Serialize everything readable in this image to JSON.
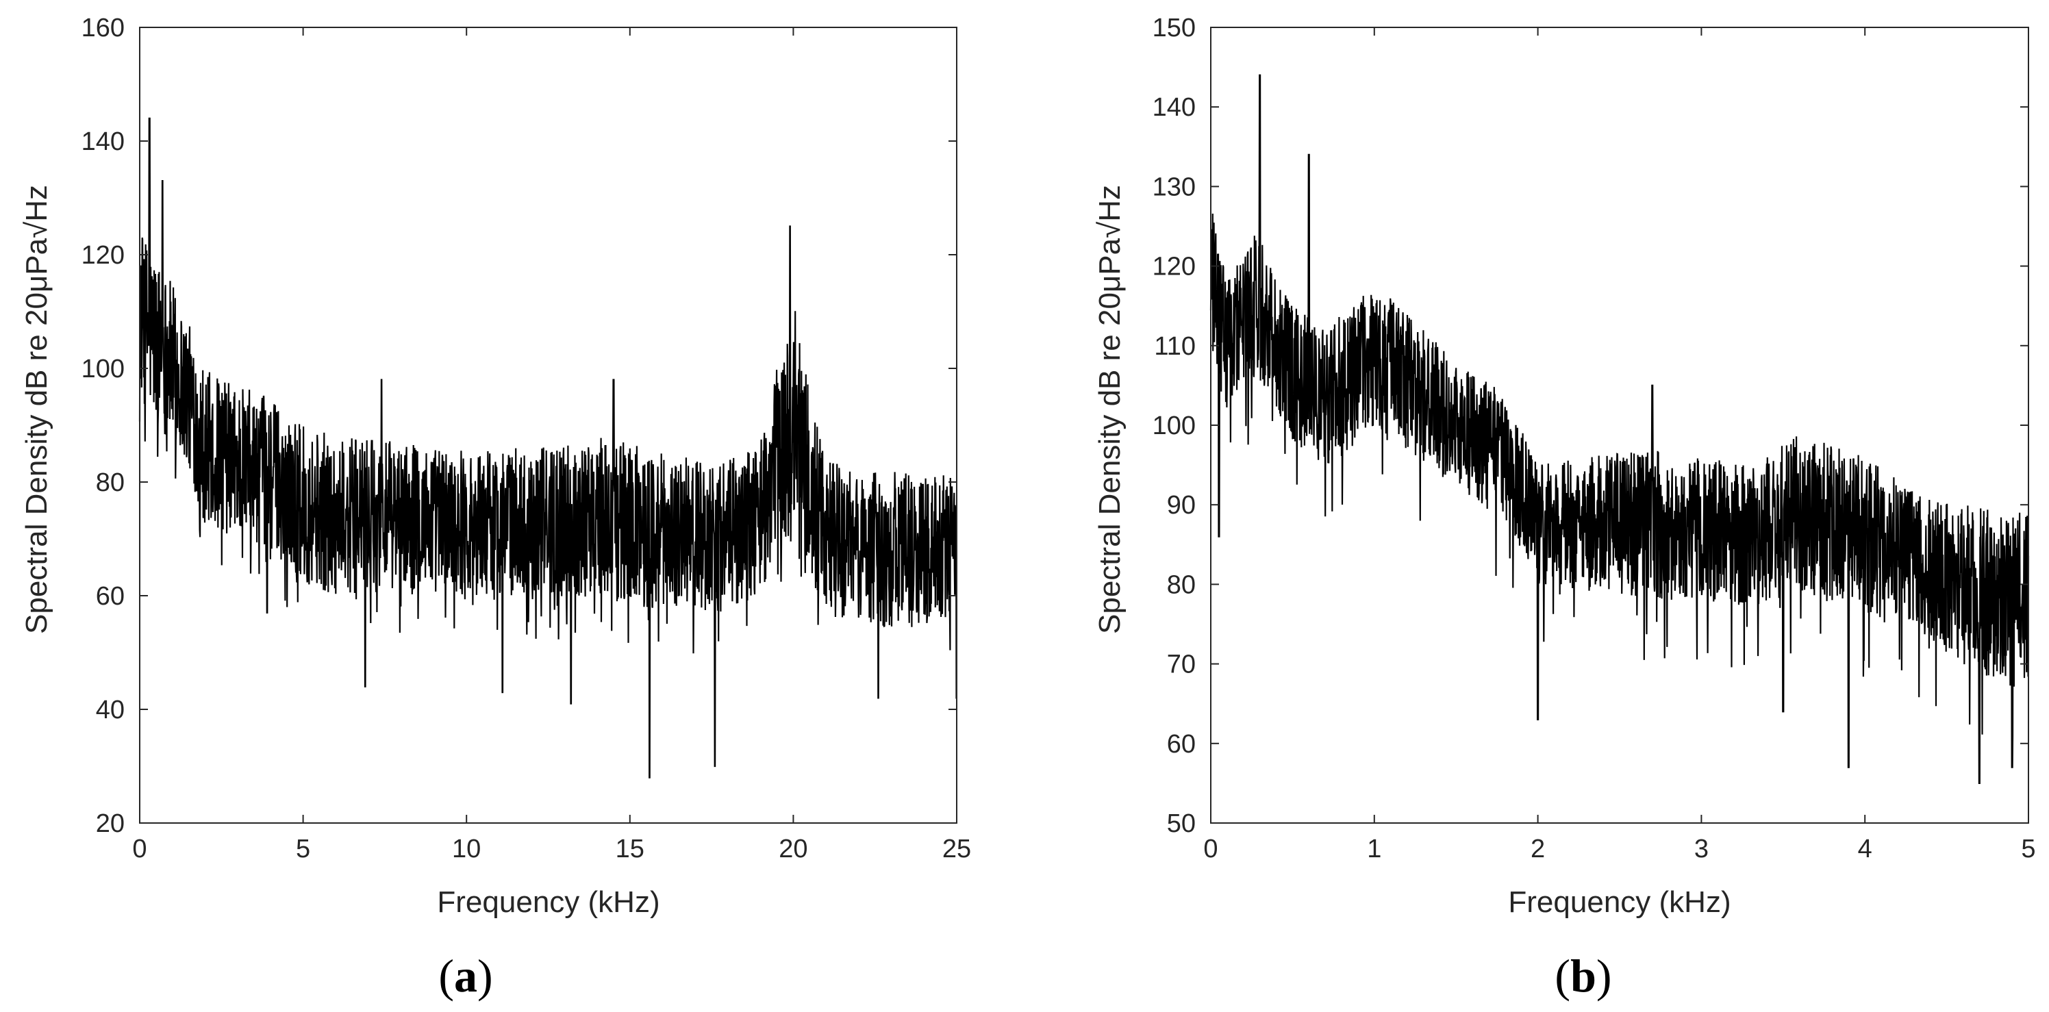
{
  "chart_data": [
    {
      "type": "line",
      "panel_label": "a",
      "xlabel": "Frequency (kHz)",
      "ylabel": "Spectral Density dB re 20μPa√Hz",
      "xlim": [
        0,
        25
      ],
      "ylim": [
        20,
        160
      ],
      "xticks": [
        0,
        5,
        10,
        15,
        20,
        25
      ],
      "yticks": [
        20,
        40,
        60,
        80,
        100,
        120,
        140,
        160
      ],
      "grid": false,
      "line_color": "#000000",
      "series": [
        {
          "x": [
            0,
            0.5,
            1,
            1.5,
            2,
            3,
            4,
            5,
            6,
            8,
            10,
            12,
            14,
            15,
            16,
            18,
            19,
            19.5,
            20,
            20.5,
            21,
            22,
            23,
            24,
            25
          ],
          "upper": [
            125,
            120,
            115,
            108,
            100,
            97,
            95,
            90,
            88,
            87,
            86,
            86,
            88,
            87,
            85,
            84,
            88,
            100,
            112,
            96,
            84,
            82,
            82,
            81,
            82
          ],
          "lower": [
            95,
            90,
            87,
            82,
            72,
            70,
            68,
            62,
            60,
            61,
            60,
            60,
            59,
            58,
            58,
            57,
            60,
            68,
            70,
            60,
            56,
            55,
            54,
            55,
            56
          ],
          "peaks": [
            [
              0.3,
              144
            ],
            [
              0.7,
              133
            ],
            [
              19.9,
              125
            ],
            [
              7.4,
              98
            ],
            [
              14.5,
              98
            ]
          ],
          "dips": [
            [
              15.6,
              28
            ],
            [
              17.6,
              30
            ],
            [
              11.1,
              43
            ],
            [
              13.2,
              41
            ],
            [
              6.9,
              44
            ],
            [
              22.6,
              42
            ],
            [
              25,
              42
            ],
            [
              3.9,
              57
            ]
          ]
        }
      ]
    },
    {
      "type": "line",
      "panel_label": "b",
      "xlabel": "Frequency (kHz)",
      "ylabel": "Spectral Density dB re 20μPa√Hz",
      "xlim": [
        0,
        5
      ],
      "ylim": [
        50,
        150
      ],
      "xticks": [
        0,
        1,
        2,
        3,
        4,
        5
      ],
      "yticks": [
        50,
        60,
        70,
        80,
        90,
        100,
        110,
        120,
        130,
        140,
        150
      ],
      "grid": false,
      "line_color": "#000000",
      "series": [
        {
          "x": [
            0,
            0.1,
            0.2,
            0.3,
            0.5,
            0.7,
            0.9,
            1,
            1.2,
            1.5,
            1.8,
            2,
            2.3,
            2.7,
            3,
            3.3,
            3.6,
            4,
            4.3,
            4.6,
            5
          ],
          "upper": [
            128,
            118,
            122,
            125,
            115,
            112,
            116,
            118,
            114,
            108,
            104,
            95,
            96,
            97,
            96,
            95,
            99,
            96,
            92,
            90,
            89
          ],
          "lower": [
            108,
            102,
            105,
            106,
            98,
            95,
            97,
            100,
            97,
            92,
            88,
            80,
            79,
            78,
            78,
            77,
            79,
            76,
            74,
            70,
            65
          ],
          "peaks": [
            [
              0.3,
              144
            ],
            [
              0.6,
              134
            ],
            [
              2.7,
              105
            ],
            [
              3.5,
              102
            ]
          ],
          "dips": [
            [
              3.9,
              57
            ],
            [
              4.7,
              55
            ],
            [
              2.0,
              63
            ],
            [
              4.9,
              57
            ],
            [
              0.05,
              86
            ],
            [
              3.5,
              64
            ]
          ]
        }
      ]
    }
  ]
}
